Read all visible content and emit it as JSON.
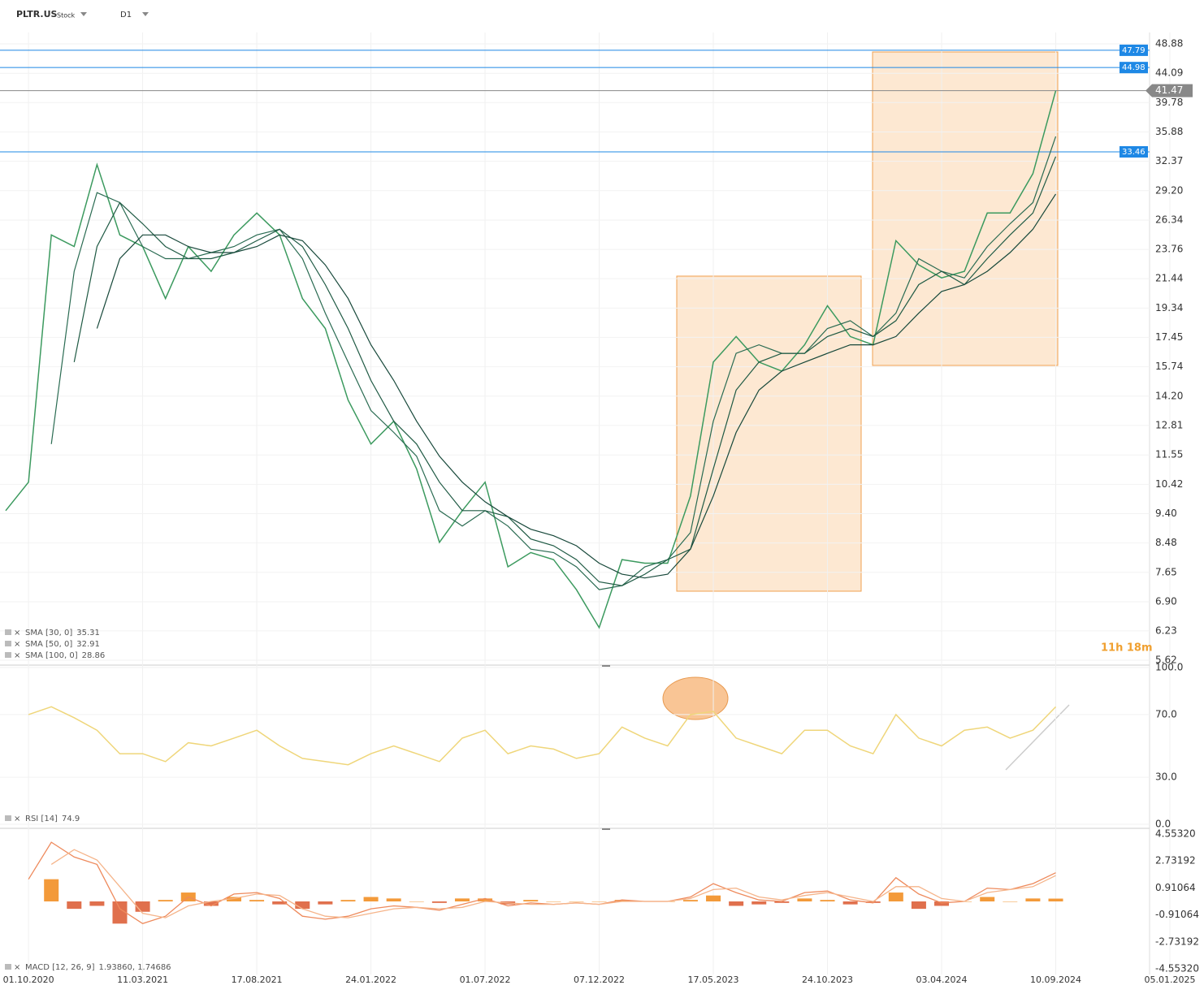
{
  "header": {
    "symbol": "PLTR.US",
    "kind": "Stock",
    "timeframe": "D1"
  },
  "countdown": "11h 18m",
  "chart_data": [
    {
      "type": "line",
      "log_scale": true,
      "grid": true,
      "categories": [
        null,
        "01.10.2020",
        null,
        null,
        null,
        null,
        "11.03.2021",
        null,
        null,
        null,
        null,
        "17.08.2021",
        null,
        null,
        null,
        null,
        "24.01.2022",
        null,
        null,
        null,
        null,
        "01.07.2022",
        null,
        null,
        null,
        null,
        "07.12.2022",
        null,
        null,
        null,
        null,
        "17.05.2023",
        null,
        null,
        null,
        null,
        "24.10.2023",
        null,
        null,
        null,
        null,
        "03.04.2024",
        null,
        null,
        null,
        null,
        "10.09.2024",
        null,
        null,
        null,
        null,
        "05.01.2025"
      ],
      "ylim": [
        5.62,
        48.88
      ],
      "yticks": [
        48.88,
        44.09,
        39.78,
        35.88,
        32.37,
        {
          "value": 29.2,
          "label": "29.20"
        },
        26.34,
        23.76,
        21.44,
        19.34,
        17.45,
        15.74,
        {
          "value": 14.2,
          "label": "14.20"
        },
        12.81,
        11.55,
        10.42,
        {
          "value": 9.4,
          "label": "9.40"
        },
        8.48,
        7.65,
        {
          "value": 6.9,
          "label": "6.90"
        },
        6.23,
        5.62
      ],
      "series": [
        {
          "color": "#3c9a5f",
          "values": [
            9.5,
            10.5,
            25,
            24,
            32,
            25,
            24,
            20,
            24,
            22,
            25,
            27,
            25,
            20,
            18,
            14,
            12,
            13,
            11,
            8.5,
            9.5,
            10.5,
            7.8,
            8.2,
            8,
            7.2,
            6.3,
            8,
            7.9,
            7.9,
            10,
            16,
            17.5,
            16,
            15.5,
            17,
            19.5,
            17.5,
            17,
            24.5,
            22.5,
            21.5,
            22,
            27,
            27,
            31,
            41.47,
            null,
            null,
            null,
            null,
            null
          ]
        },
        {
          "name": "SMA [30, 0]",
          "color": "#2a6b52",
          "values": [
            null,
            null,
            12,
            22,
            29,
            28,
            24,
            23,
            23,
            23.5,
            24,
            25,
            25.5,
            23,
            19,
            16,
            13.5,
            12.5,
            11.5,
            9.5,
            9,
            9.5,
            9,
            8.3,
            8.2,
            7.8,
            7.2,
            7.3,
            7.8,
            8,
            8.8,
            13,
            16.5,
            17,
            16.5,
            16.5,
            18,
            18.5,
            17.5,
            19,
            23,
            22,
            21.5,
            24,
            26,
            28,
            35.31,
            null,
            null,
            null,
            null,
            null
          ]
        },
        {
          "name": "SMA [50, 0]",
          "color": "#1f5a44",
          "values": [
            null,
            null,
            null,
            16,
            24,
            28,
            26,
            24,
            23,
            23,
            23.5,
            24.5,
            25.5,
            24,
            21,
            18,
            15,
            13,
            12,
            10.5,
            9.5,
            9.5,
            9.3,
            8.6,
            8.4,
            8,
            7.4,
            7.3,
            7.6,
            8,
            8.3,
            11,
            14.5,
            16,
            16.5,
            16.5,
            17.5,
            18,
            17.5,
            18.5,
            21,
            22,
            21,
            23,
            25,
            27,
            32.91,
            null,
            null,
            null,
            null,
            null
          ]
        },
        {
          "name": "SMA [100, 0]",
          "color": "#17483a",
          "values": [
            null,
            null,
            null,
            null,
            18,
            23,
            25,
            25,
            24,
            23.5,
            23.5,
            24,
            25,
            24.5,
            22.5,
            20,
            17,
            15,
            13,
            11.5,
            10.5,
            9.8,
            9.3,
            8.9,
            8.7,
            8.4,
            7.9,
            7.6,
            7.5,
            7.6,
            8.3,
            10,
            12.5,
            14.5,
            15.5,
            16,
            16.5,
            17,
            17,
            17.5,
            19,
            20.5,
            21,
            22,
            23.5,
            25.5,
            28.86,
            null,
            null,
            null,
            null,
            null
          ]
        }
      ],
      "levels": [
        {
          "value": 47.79,
          "color": "#1e88e5"
        },
        {
          "value": 44.98,
          "color": "#1e88e5"
        },
        {
          "value": 41.47,
          "color": "#888888"
        },
        {
          "value": 33.46,
          "color": "#1e88e5"
        }
      ]
    },
    {
      "type": "line",
      "grid": true,
      "ylim": [
        0,
        100
      ],
      "yticks": [
        {
          "value": 100,
          "label": "100.0"
        },
        {
          "value": 70,
          "label": "70.0"
        },
        {
          "value": 30,
          "label": "30.0"
        },
        {
          "value": 0,
          "label": "0.0"
        }
      ],
      "series": [
        {
          "name": "RSI [14]",
          "color": "#efd67a",
          "values": [
            null,
            70,
            75,
            68,
            60,
            45,
            45,
            40,
            52,
            50,
            55,
            60,
            50,
            42,
            40,
            38,
            45,
            50,
            45,
            40,
            55,
            60,
            45,
            50,
            48,
            42,
            45,
            62,
            55,
            50,
            70,
            72,
            55,
            50,
            45,
            60,
            60,
            50,
            45,
            70,
            55,
            50,
            60,
            62,
            55,
            60,
            74.9,
            null,
            null,
            null,
            null,
            null
          ]
        }
      ]
    },
    {
      "type": "macd",
      "grid": false,
      "ylim": [
        -4.5532,
        4.5532
      ],
      "yticks": [
        {
          "value": 4.5532,
          "label": "4.55320"
        },
        2.73192,
        0.91064,
        -0.91064,
        -2.73192,
        {
          "value": -4.5532,
          "label": "-4.55320"
        }
      ],
      "legend": {
        "name": "MACD [12, 26, 9]",
        "values": "1.93860, 1.74686"
      },
      "series": [
        {
          "kind": "histogram",
          "color": "#f39a3a",
          "negative_color": "#e0704d",
          "values": [
            null,
            null,
            1.5,
            -0.5,
            -0.3,
            -1.5,
            -0.7,
            0.1,
            0.6,
            -0.3,
            0.3,
            0.1,
            -0.2,
            -0.5,
            -0.2,
            0.1,
            0.3,
            0.2,
            0,
            -0.1,
            0.2,
            0.2,
            -0.2,
            0.1,
            0,
            0,
            0,
            0.1,
            0,
            0,
            0.1,
            0.4,
            -0.3,
            -0.2,
            -0.1,
            0.2,
            0.1,
            -0.2,
            -0.1,
            0.6,
            -0.5,
            -0.3,
            0,
            0.3,
            0,
            0.2,
            0.19,
            null,
            null,
            null,
            null,
            null
          ]
        },
        {
          "kind": "line",
          "color": "#ee8a5c",
          "values": [
            null,
            1.5,
            4,
            3,
            2.5,
            -0.5,
            -1.5,
            -1,
            0.3,
            -0.3,
            0.5,
            0.6,
            0.2,
            -1,
            -1.2,
            -1,
            -0.5,
            -0.3,
            -0.4,
            -0.6,
            -0.2,
            0.2,
            -0.3,
            -0.1,
            -0.2,
            -0.1,
            -0.2,
            0.1,
            0,
            0,
            0.3,
            1.2,
            0.6,
            0.1,
            0,
            0.6,
            0.7,
            0.1,
            -0.1,
            1.6,
            0.5,
            -0.1,
            0,
            0.9,
            0.8,
            1.2,
            1.9386,
            null,
            null,
            null,
            null,
            null
          ]
        },
        {
          "kind": "line",
          "color": "#f5b48a",
          "values": [
            null,
            null,
            2.5,
            3.5,
            2.8,
            1,
            -0.8,
            -1.1,
            -0.3,
            0,
            0.2,
            0.5,
            0.4,
            -0.5,
            -1,
            -1.1,
            -0.8,
            -0.5,
            -0.4,
            -0.5,
            -0.4,
            0,
            -0.1,
            -0.2,
            -0.2,
            -0.1,
            -0.2,
            0,
            0,
            0,
            0.2,
            0.8,
            0.9,
            0.3,
            0.1,
            0.4,
            0.6,
            0.3,
            0,
            1,
            1,
            0.2,
            0,
            0.6,
            0.8,
            1,
            1.74686,
            null,
            null,
            null,
            null,
            null
          ]
        }
      ]
    }
  ]
}
